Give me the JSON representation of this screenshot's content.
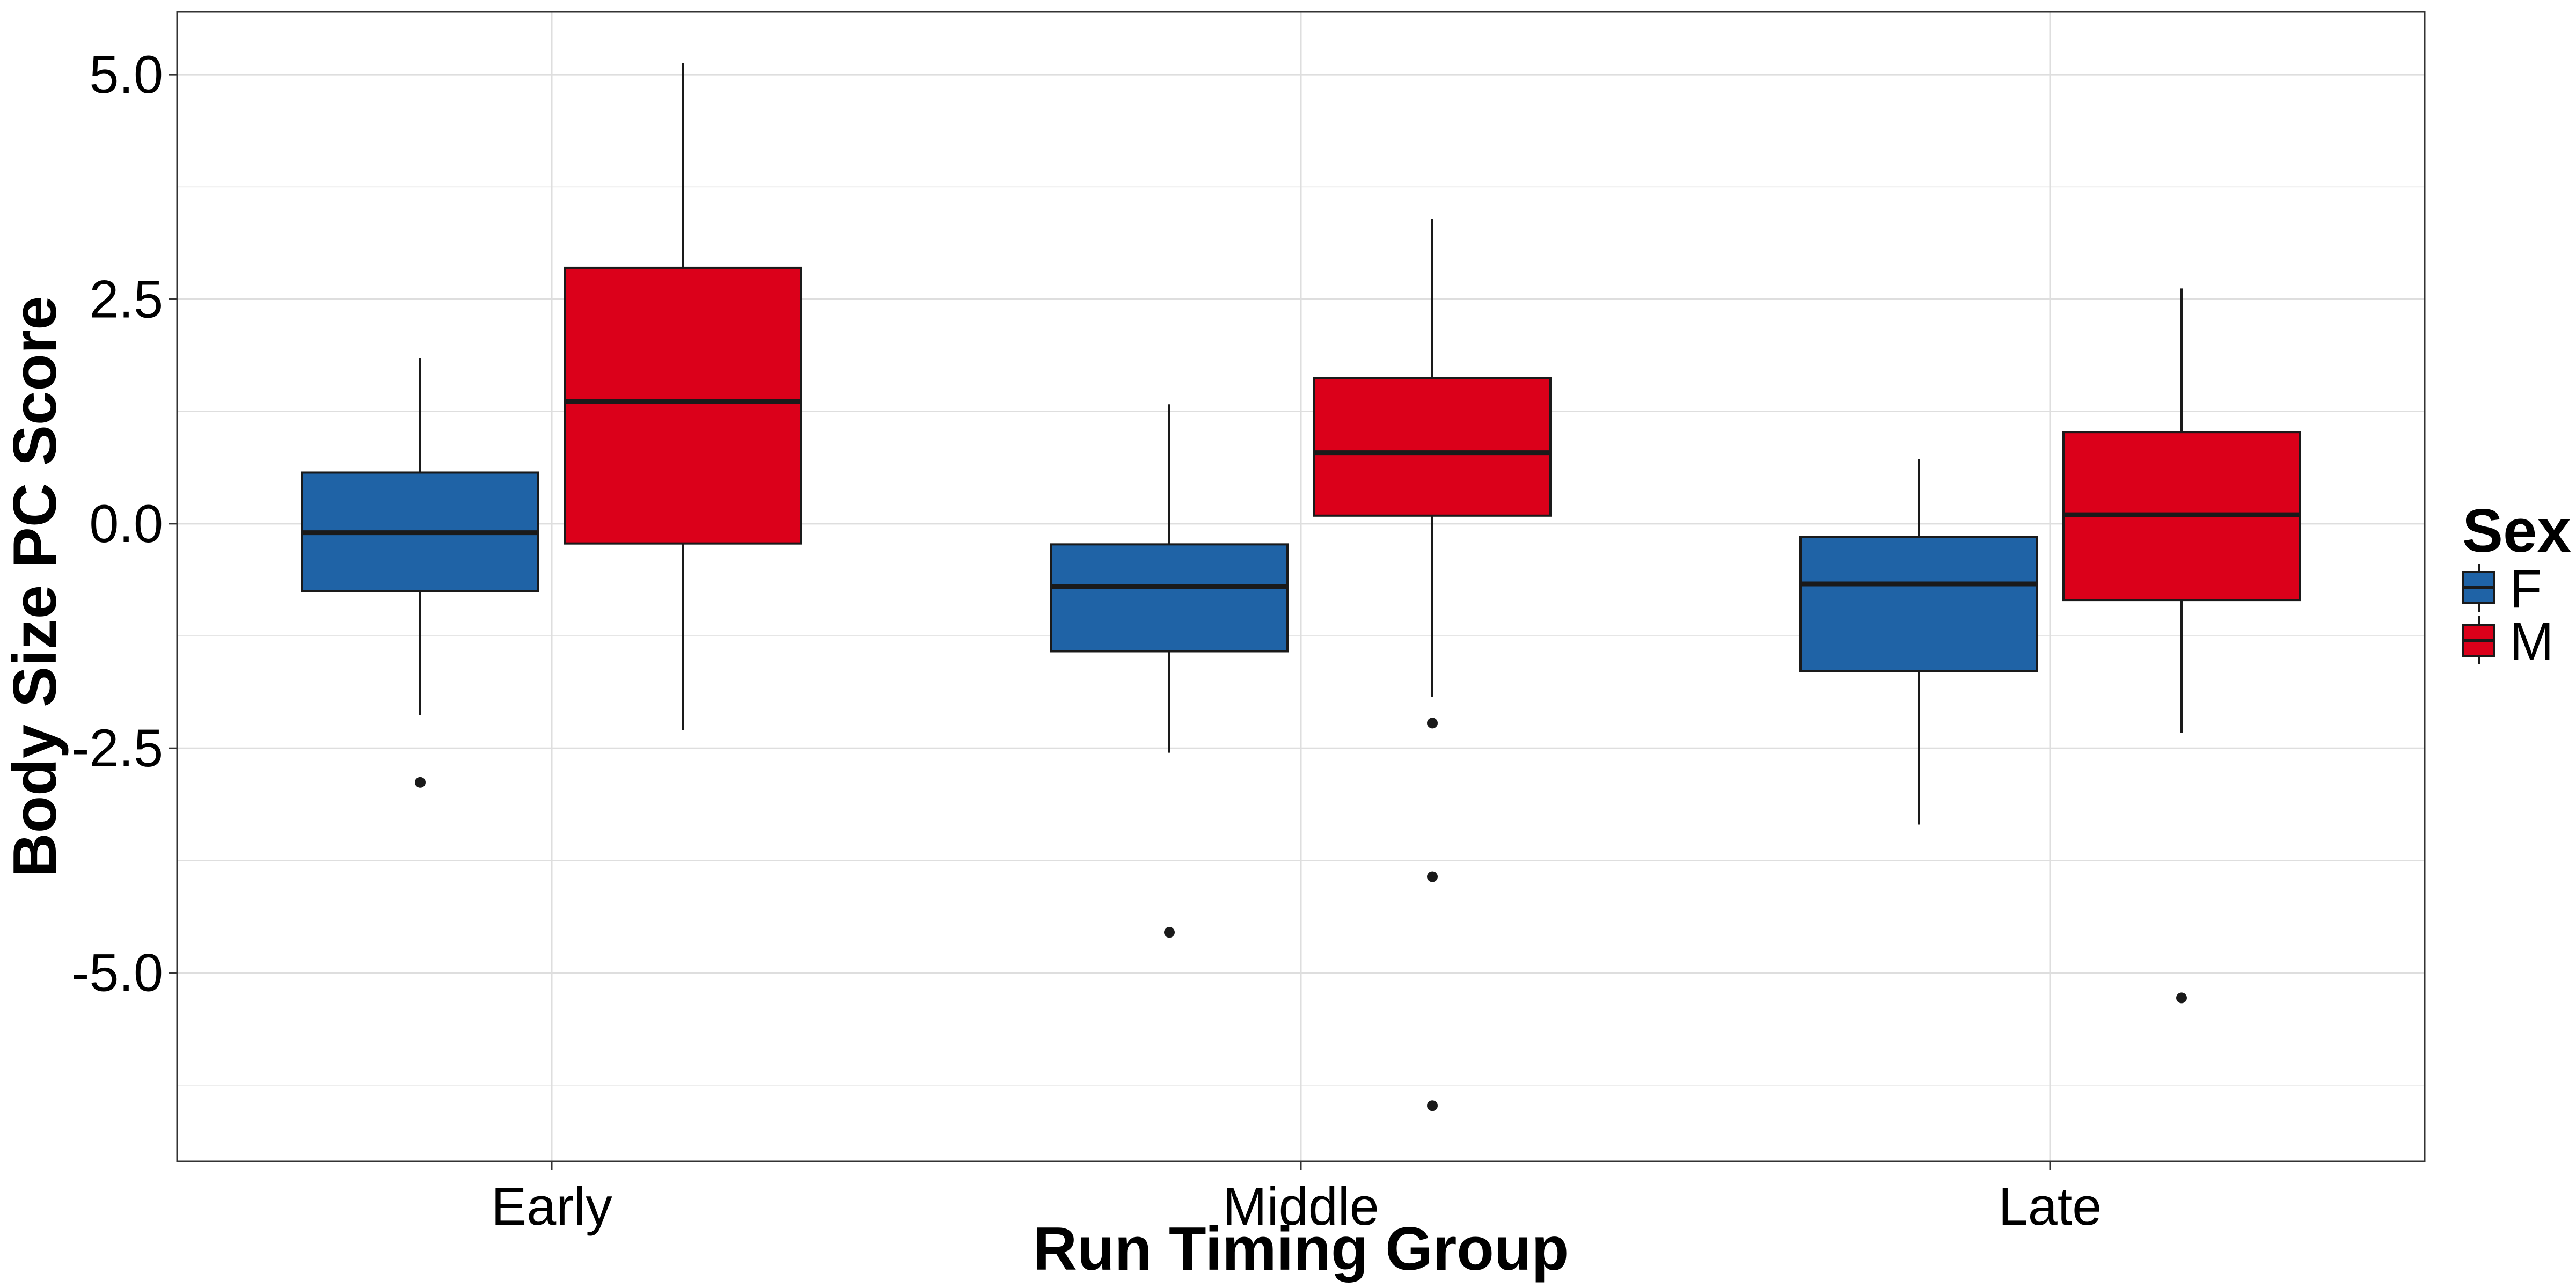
{
  "chart_data": {
    "type": "boxplot",
    "xlabel": "Run Timing Group",
    "ylabel": "Body Size PC Score",
    "categories": [
      "Early",
      "Middle",
      "Late"
    ],
    "ylim": [
      -7.1,
      5.7
    ],
    "yticks": [
      {
        "value": 5.0,
        "label": "5.0"
      },
      {
        "value": 2.5,
        "label": "2.5"
      },
      {
        "value": 0.0,
        "label": "0.0"
      },
      {
        "value": -2.5,
        "label": "-2.5"
      },
      {
        "value": -5.0,
        "label": "-5.0"
      }
    ],
    "grid": true,
    "legend": {
      "title": "Sex",
      "position": "right"
    },
    "series": [
      {
        "name": "F",
        "color": "#1F63A6",
        "boxes": [
          {
            "category": "Early",
            "whisker_low": -2.13,
            "q1": -0.75,
            "median": -0.1,
            "q3": 0.57,
            "whisker_high": 1.84,
            "outliers": [
              -2.88
            ]
          },
          {
            "category": "Middle",
            "whisker_low": -2.55,
            "q1": -1.42,
            "median": -0.7,
            "q3": -0.23,
            "whisker_high": 1.33,
            "outliers": [
              -4.55
            ]
          },
          {
            "category": "Late",
            "whisker_low": -3.35,
            "q1": -1.64,
            "median": -0.67,
            "q3": -0.15,
            "whisker_high": 0.72,
            "outliers": []
          }
        ]
      },
      {
        "name": "M",
        "color": "#DB001A",
        "boxes": [
          {
            "category": "Early",
            "whisker_low": -2.3,
            "q1": -0.22,
            "median": 1.36,
            "q3": 2.85,
            "whisker_high": 5.13,
            "outliers": []
          },
          {
            "category": "Middle",
            "whisker_low": -1.93,
            "q1": 0.09,
            "median": 0.79,
            "q3": 1.62,
            "whisker_high": 3.39,
            "outliers": [
              -2.22,
              -3.93,
              -6.48
            ]
          },
          {
            "category": "Late",
            "whisker_low": -2.33,
            "q1": -0.85,
            "median": 0.1,
            "q3": 1.02,
            "whisker_high": 2.62,
            "outliers": [
              -5.28
            ]
          }
        ]
      }
    ]
  }
}
